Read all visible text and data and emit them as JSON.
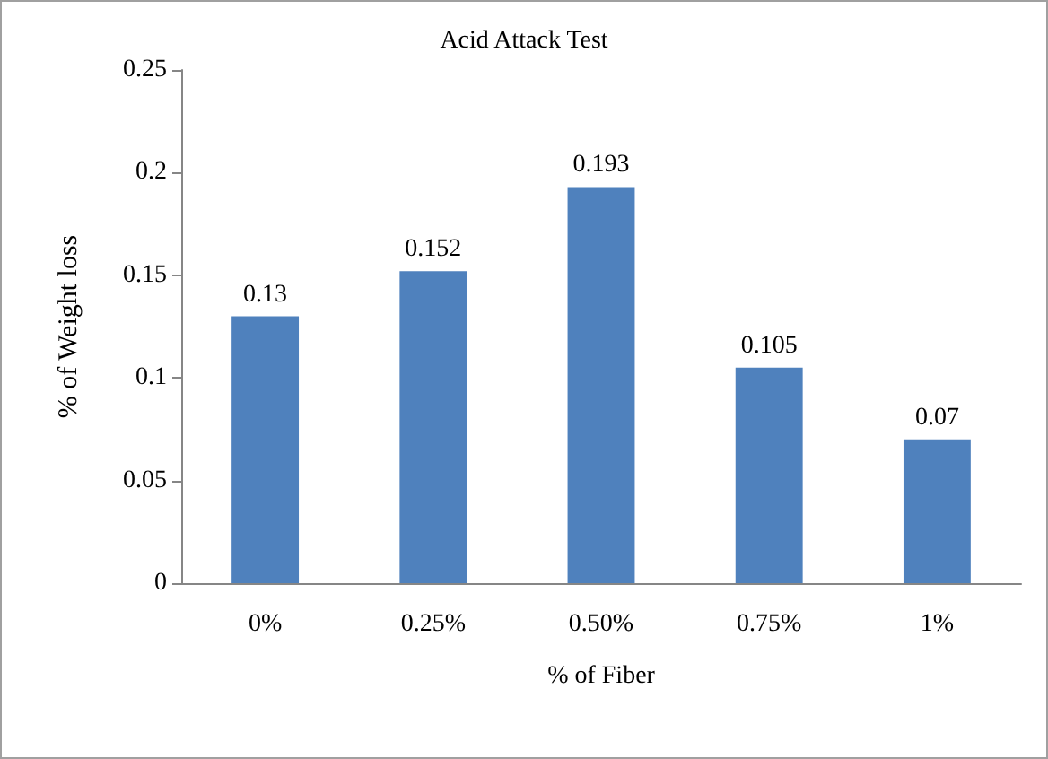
{
  "chart_data": {
    "type": "bar",
    "title": "Acid Attack Test",
    "xlabel": "% of Fiber",
    "ylabel": "% of Weight loss",
    "categories": [
      "0%",
      "0.25%",
      "0.50%",
      "0.75%",
      "1%"
    ],
    "values": [
      0.13,
      0.152,
      0.193,
      0.105,
      0.07
    ],
    "color": "#4f81bd",
    "ylim": [
      0,
      0.25
    ],
    "yticks": [
      0,
      0.05,
      0.1,
      0.15,
      0.2,
      0.25
    ],
    "data_labels": true
  }
}
